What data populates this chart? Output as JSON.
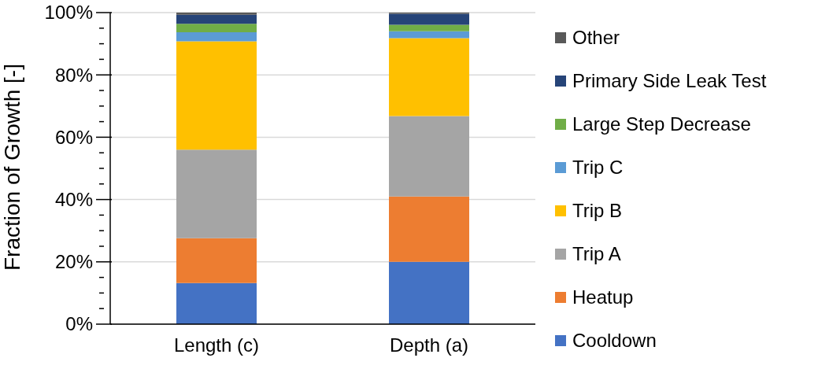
{
  "chart_data": {
    "type": "bar",
    "stacked": true,
    "ylabel": "Fraction of Growth [-]",
    "categories": [
      "Length (c)",
      "Depth (a)"
    ],
    "series": [
      {
        "name": "Cooldown",
        "color": "#4472c4",
        "values": [
          13.2,
          20
        ]
      },
      {
        "name": "Heatup",
        "color": "#ed7d31",
        "values": [
          14.4,
          21
        ]
      },
      {
        "name": "Trip A",
        "color": "#a5a5a5",
        "values": [
          28.4,
          25.8
        ]
      },
      {
        "name": "Trip B",
        "color": "#ffc000",
        "values": [
          34.8,
          25
        ]
      },
      {
        "name": "Trip C",
        "color": "#5b9bd5",
        "values": [
          2.9,
          2.2
        ]
      },
      {
        "name": "Large Step Decrease",
        "color": "#70ad47",
        "values": [
          2.7,
          2.1
        ]
      },
      {
        "name": "Primary Side Leak Test",
        "color": "#264478",
        "values": [
          2.9,
          3.5
        ]
      },
      {
        "name": "Other",
        "color": "#595959",
        "values": [
          0.7,
          0.4
        ]
      }
    ],
    "ylim": [
      0,
      100
    ],
    "yticks": [
      {
        "value": 0,
        "label": "0%"
      },
      {
        "value": 5,
        "label": null
      },
      {
        "value": 10,
        "label": null
      },
      {
        "value": 15,
        "label": null
      },
      {
        "value": 20,
        "label": "20%"
      },
      {
        "value": 25,
        "label": null
      },
      {
        "value": 30,
        "label": null
      },
      {
        "value": 35,
        "label": null
      },
      {
        "value": 40,
        "label": "40%"
      },
      {
        "value": 45,
        "label": null
      },
      {
        "value": 50,
        "label": null
      },
      {
        "value": 55,
        "label": null
      },
      {
        "value": 60,
        "label": "60%"
      },
      {
        "value": 65,
        "label": null
      },
      {
        "value": 70,
        "label": null
      },
      {
        "value": 75,
        "label": null
      },
      {
        "value": 80,
        "label": "80%"
      },
      {
        "value": 85,
        "label": null
      },
      {
        "value": 90,
        "label": null
      },
      {
        "value": 95,
        "label": null
      },
      {
        "value": 100,
        "label": "100%"
      }
    ],
    "grid": "y",
    "legend": "right"
  }
}
